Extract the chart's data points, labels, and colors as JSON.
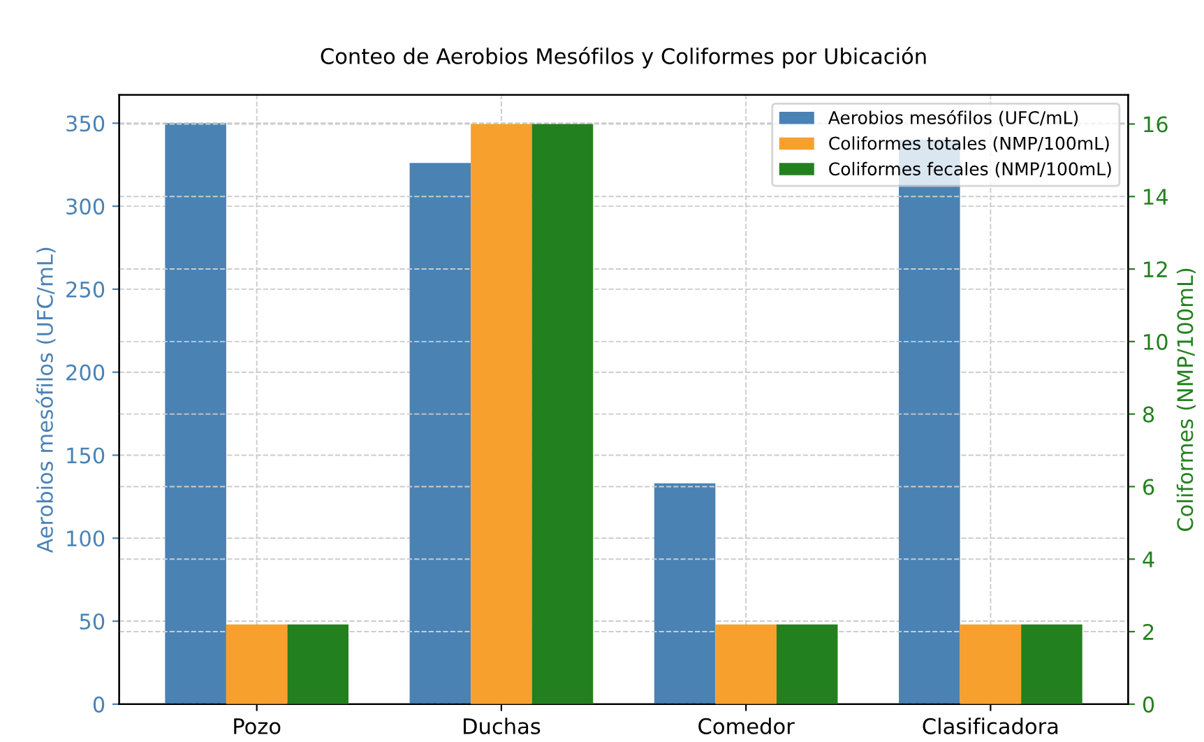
{
  "chart_data": {
    "type": "bar",
    "title": "Conteo de Aerobios Mesófilos y Coliformes por Ubicación",
    "categories": [
      "Pozo",
      "Duchas",
      "Comedor",
      "Clasificadora"
    ],
    "ylabel": "Aerobios mesófilos (UFC/mL)",
    "y2label": "Coliformes (NMP/100mL)",
    "series": [
      {
        "name": "Aerobios mesófilos (UFC/mL)",
        "color": "#4a82b4",
        "values": [
          350,
          326,
          133,
          340
        ]
      },
      {
        "name": "Coliformes totales (NMP/100mL)",
        "color": "#f7a02e",
        "values": [
          2.2,
          16,
          2.2,
          2.2
        ],
        "axis": "y2"
      },
      {
        "name": "Coliformes fecales (NMP/100mL)",
        "color": "#23801e",
        "values": [
          2.2,
          16,
          2.2,
          2.2
        ],
        "axis": "y2"
      }
    ],
    "ylim": [
      0,
      367
    ],
    "yticks": [
      0,
      50,
      100,
      150,
      200,
      250,
      300,
      350
    ],
    "y2lim": [
      0,
      16.8
    ],
    "y2ticks": [
      0,
      2,
      4,
      6,
      8,
      10,
      12,
      14,
      16
    ],
    "grid": true,
    "legend": "top right"
  }
}
